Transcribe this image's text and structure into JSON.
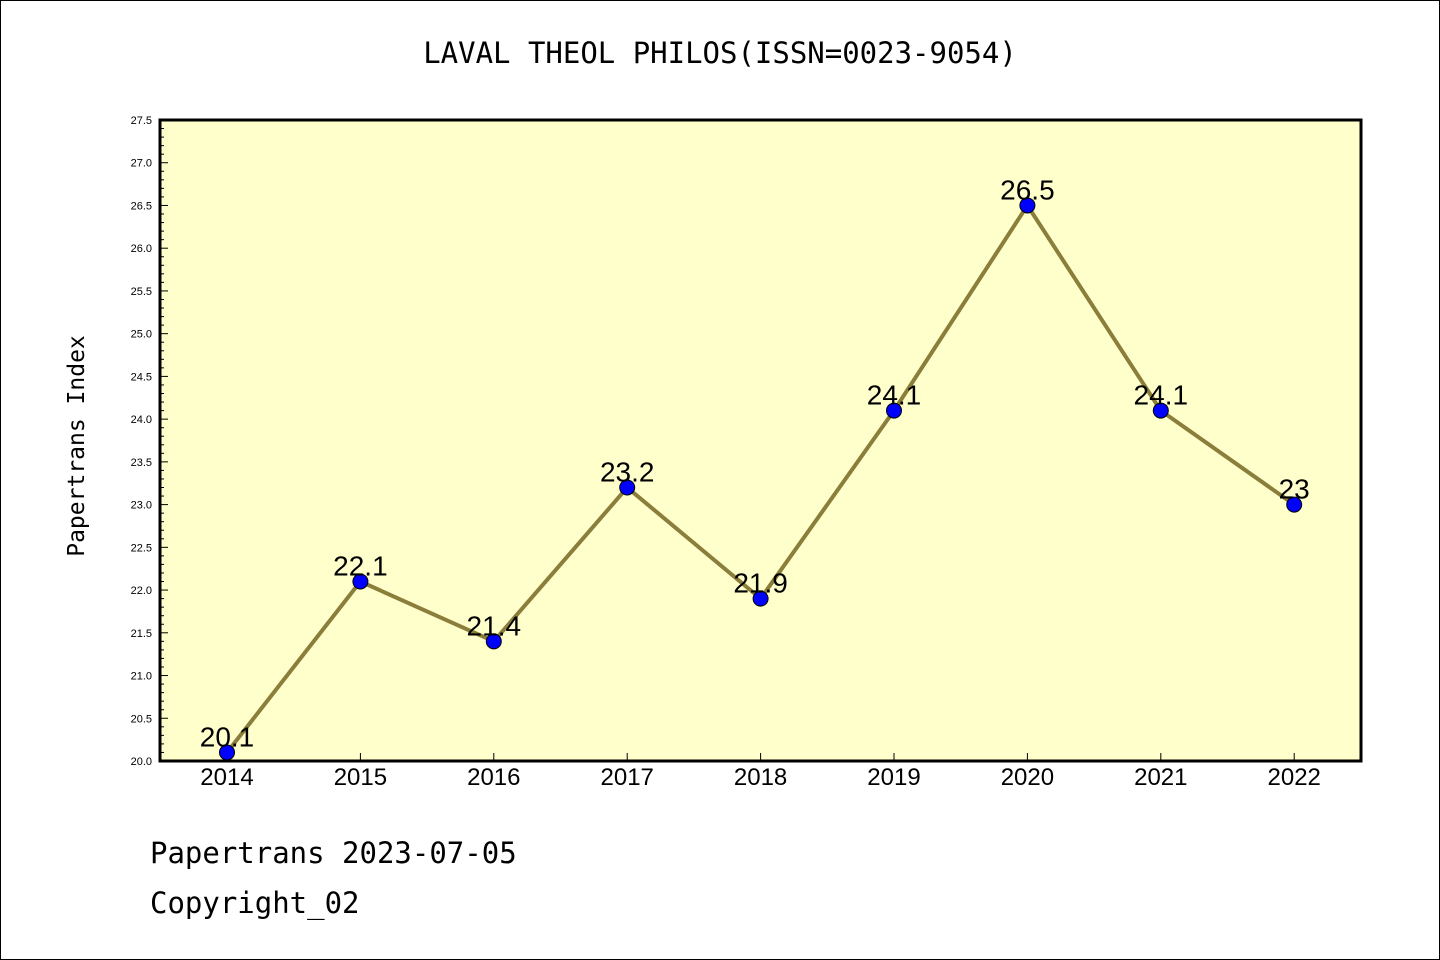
{
  "header": {
    "title": "LAVAL THEOL PHILOS(ISSN=0023-9054)"
  },
  "footer": {
    "line1": "Papertrans 2023-07-05",
    "line2": "Copyright_02"
  },
  "chart_data": {
    "type": "line",
    "title": "LAVAL THEOL PHILOS(ISSN=0023-9054)",
    "xlabel": "",
    "ylabel": "Papertrans Index",
    "categories": [
      "2014",
      "2015",
      "2016",
      "2017",
      "2018",
      "2019",
      "2020",
      "2021",
      "2022"
    ],
    "values": [
      20.1,
      22.1,
      21.4,
      23.2,
      21.9,
      24.1,
      26.5,
      24.1,
      23
    ],
    "value_labels": [
      "20.1",
      "22.1",
      "21.4",
      "23.2",
      "21.9",
      "24.1",
      "26.5",
      "24.1",
      "23"
    ],
    "ylim": [
      20.0,
      27.5
    ],
    "y_ticks": [
      "20.0",
      "20.5",
      "21.0",
      "21.5",
      "22.0",
      "22.5",
      "23.0",
      "23.5",
      "24.0",
      "24.5",
      "25.0",
      "25.5",
      "26.0",
      "26.5",
      "27.0",
      "27.5"
    ],
    "grid": false,
    "colors": {
      "plot_bg": "#ffffcc",
      "line": "#8b7d3a",
      "marker": "#0000ff"
    }
  }
}
